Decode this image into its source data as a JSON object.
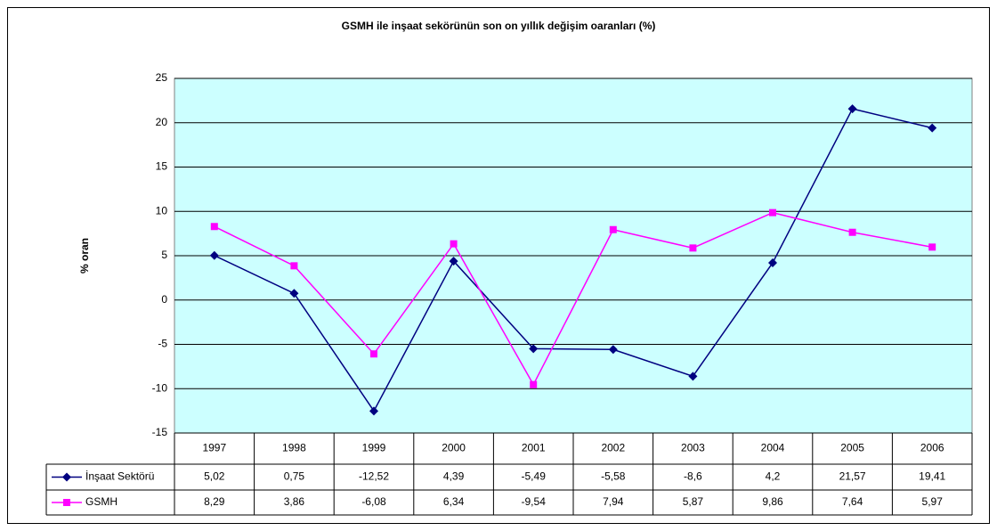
{
  "chart_data": {
    "type": "line",
    "title": "GSMH ile inşaat sekörünün son on yıllık değişim oaranları (%)",
    "y_label": "% oran",
    "categories": [
      "1997",
      "1998",
      "1999",
      "2000",
      "2001",
      "2002",
      "2003",
      "2004",
      "2005",
      "2006"
    ],
    "series": [
      {
        "name": "İnşaat Sektörü",
        "color": "#000080",
        "marker": "diamond",
        "values": [
          5.02,
          0.75,
          -12.52,
          4.39,
          -5.49,
          -5.58,
          -8.6,
          4.2,
          21.57,
          19.41
        ],
        "value_labels": [
          "5,02",
          "0,75",
          "-12,52",
          "4,39",
          "-5,49",
          "-5,58",
          "-8,6",
          "4,2",
          "21,57",
          "19,41"
        ]
      },
      {
        "name": "GSMH",
        "color": "#ff00ff",
        "marker": "square",
        "values": [
          8.29,
          3.86,
          -6.08,
          6.34,
          -9.54,
          7.94,
          5.87,
          9.86,
          7.64,
          5.97
        ],
        "value_labels": [
          "8,29",
          "3,86",
          "-6,08",
          "6,34",
          "-9,54",
          "7,94",
          "5,87",
          "9,86",
          "7,64",
          "5,97"
        ]
      }
    ],
    "ylim": [
      -15,
      25
    ],
    "yticks": [
      -15,
      -10,
      -5,
      0,
      5,
      10,
      15,
      20,
      25
    ],
    "grid": true,
    "plot_background": "#ccffff"
  }
}
